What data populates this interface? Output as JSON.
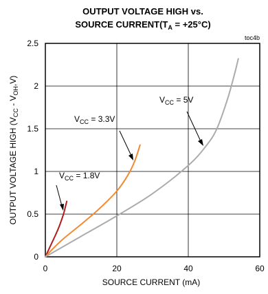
{
  "chart_data": {
    "type": "line",
    "title_line1": "OUTPUT VOLTAGE HIGH vs.",
    "title_line2": {
      "prefix": "SOURCE CURRENT(T",
      "sub": "A",
      "suffix": " = +25°C)"
    },
    "figure_id": "toc4b",
    "xlabel": "SOURCE CURRENT (mA)",
    "ylabel": {
      "p1": "OUTPUT VOLTAGE HIGH (V",
      "s1": "CC",
      "p2": " - V",
      "s2": "OH",
      "p3": ",V)"
    },
    "xlim": [
      0,
      60
    ],
    "ylim": [
      0,
      2.5
    ],
    "xticks": [
      "0",
      "20",
      "40",
      "60"
    ],
    "yticks": [
      "0",
      "0.5",
      "1",
      "1.5",
      "2",
      "2.5"
    ],
    "grid": true,
    "series": [
      {
        "name": "VCC = 1.8V",
        "label": {
          "main": "V",
          "sub": "CC",
          "rest": " = 1.8V"
        },
        "color": "#b01c1c",
        "x": [
          0,
          1,
          2,
          3,
          4,
          5,
          5.7,
          6
        ],
        "y": [
          0,
          0.09,
          0.18,
          0.27,
          0.37,
          0.49,
          0.6,
          0.65
        ]
      },
      {
        "name": "VCC = 3.3V",
        "label": {
          "main": "V",
          "sub": "CC",
          "rest": " = 3.3V"
        },
        "color": "#f08a33",
        "x": [
          0,
          2,
          5,
          10,
          15,
          20,
          23,
          25,
          26.5
        ],
        "y": [
          0,
          0.09,
          0.21,
          0.38,
          0.56,
          0.77,
          0.95,
          1.12,
          1.31
        ]
      },
      {
        "name": "VCC = 5V",
        "label": {
          "main": "V",
          "sub": "CC",
          "rest": " = 5V"
        },
        "color": "#ababab",
        "x": [
          0,
          10,
          20,
          30,
          40,
          45,
          48,
          51,
          53,
          54
        ],
        "y": [
          0,
          0.24,
          0.48,
          0.74,
          1.07,
          1.3,
          1.5,
          1.85,
          2.15,
          2.32
        ]
      }
    ]
  }
}
